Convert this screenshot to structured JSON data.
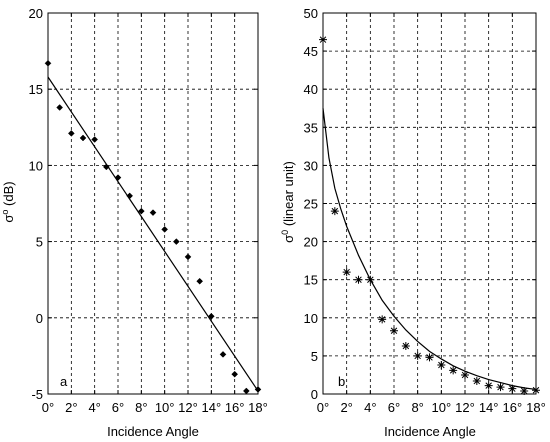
{
  "chart_data": [
    {
      "type": "scatter",
      "panel_label": "a",
      "xlabel": "Incidence Angle",
      "ylabel_main": "σ",
      "ylabel_sup": "o",
      "ylabel_rest": " (dB)",
      "xlim": [
        0,
        18
      ],
      "ylim": [
        -5,
        20
      ],
      "yticks": [
        -5,
        0,
        5,
        10,
        15,
        20
      ],
      "ytick_labels": [
        "-5",
        "0",
        "5",
        "10",
        "15",
        "20"
      ],
      "xticks": [
        0,
        2,
        4,
        6,
        8,
        10,
        12,
        14,
        16,
        18
      ],
      "xtick_labels": [
        "0°",
        "2°",
        "4°",
        "6°",
        "8°",
        "10°",
        "12°",
        "14°",
        "16°",
        "18°"
      ],
      "grid": true,
      "marker": "diamond",
      "series": [
        {
          "kind": "points",
          "x": [
            0,
            1,
            2,
            3,
            4,
            5,
            6,
            7,
            8,
            9,
            10,
            11,
            12,
            13,
            14,
            15,
            16,
            17,
            18
          ],
          "y": [
            16.7,
            13.8,
            12.1,
            11.8,
            11.7,
            9.9,
            9.2,
            8.0,
            7.0,
            6.9,
            5.8,
            5.0,
            4.0,
            2.4,
            0.1,
            -2.4,
            -3.7,
            -4.8,
            -4.7
          ]
        },
        {
          "kind": "line",
          "x": [
            0,
            18
          ],
          "y": [
            15.8,
            -4.8
          ]
        }
      ]
    },
    {
      "type": "scatter",
      "panel_label": "b",
      "xlabel": "Incidence Angle",
      "ylabel_main": "σ",
      "ylabel_sup": "0",
      "ylabel_rest": " (linear unit)",
      "xlim": [
        0,
        18
      ],
      "ylim": [
        0,
        50
      ],
      "yticks": [
        0,
        5,
        10,
        15,
        20,
        25,
        30,
        35,
        40,
        45,
        50
      ],
      "ytick_labels": [
        "0",
        "5",
        "10",
        "15",
        "20",
        "25",
        "30",
        "35",
        "40",
        "45",
        "50"
      ],
      "xticks": [
        0,
        2,
        4,
        6,
        8,
        10,
        12,
        14,
        16,
        18
      ],
      "xtick_labels": [
        "0°",
        "2°",
        "4°",
        "6°",
        "8°",
        "10°",
        "12°",
        "14°",
        "16°",
        "18°"
      ],
      "grid": true,
      "marker": "asterisk",
      "series": [
        {
          "kind": "points",
          "x": [
            0,
            1,
            2,
            3,
            4,
            5,
            6,
            7,
            8,
            9,
            10,
            11,
            12,
            13,
            14,
            15,
            16,
            17,
            18
          ],
          "y": [
            46.5,
            24.0,
            16.0,
            15.0,
            15.0,
            9.8,
            8.3,
            6.3,
            5.0,
            4.8,
            3.8,
            3.1,
            2.5,
            1.7,
            1.1,
            0.9,
            0.7,
            0.4,
            0.5
          ]
        },
        {
          "kind": "curve",
          "x": [
            0,
            0.5,
            1,
            1.5,
            2,
            3,
            4,
            5,
            6,
            7,
            8,
            9,
            10,
            11,
            12,
            13,
            14,
            15,
            16,
            17,
            18
          ],
          "y": [
            37.5,
            31.0,
            27.0,
            24.3,
            22.0,
            18.2,
            15.0,
            12.3,
            10.2,
            8.4,
            6.9,
            5.6,
            4.6,
            3.7,
            3.0,
            2.4,
            1.9,
            1.5,
            1.1,
            0.8,
            0.6
          ]
        }
      ]
    }
  ]
}
